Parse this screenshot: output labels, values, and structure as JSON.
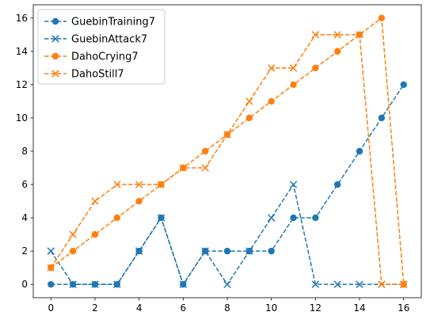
{
  "chart_data": {
    "type": "line",
    "title": "",
    "xlabel": "",
    "ylabel": "",
    "xlim": [
      -0.8,
      16.8
    ],
    "ylim": [
      -0.8,
      16.8
    ],
    "x_ticks": [
      0,
      2,
      4,
      6,
      8,
      10,
      12,
      14,
      16
    ],
    "y_ticks": [
      0,
      2,
      4,
      6,
      8,
      10,
      12,
      14,
      16
    ],
    "grid": false,
    "legend_position": "upper-left",
    "x": [
      0,
      1,
      2,
      3,
      4,
      5,
      6,
      7,
      8,
      9,
      10,
      11,
      12,
      13,
      14,
      15,
      16
    ],
    "series": [
      {
        "name": "GuebinTraining7",
        "color": "#1f77b4",
        "marker": "circle",
        "linestyle": "dashed",
        "values": [
          0,
          0,
          0,
          0,
          2,
          4,
          0,
          2,
          2,
          2,
          2,
          4,
          4,
          6,
          8,
          10,
          12
        ]
      },
      {
        "name": "GuebinAttack7",
        "color": "#1f77b4",
        "marker": "x",
        "linestyle": "dashed",
        "values": [
          2,
          0,
          0,
          0,
          2,
          4,
          0,
          2,
          0,
          2,
          4,
          6,
          0,
          0,
          0,
          0,
          0
        ]
      },
      {
        "name": "DahoCrying7",
        "color": "#ff7f0e",
        "marker": "circle",
        "linestyle": "dashed",
        "values": [
          1,
          2,
          3,
          4,
          5,
          6,
          7,
          8,
          9,
          10,
          11,
          12,
          13,
          14,
          15,
          16,
          0
        ]
      },
      {
        "name": "DahoStill7",
        "color": "#ff7f0e",
        "marker": "x",
        "linestyle": "dashed",
        "values": [
          1,
          3,
          5,
          6,
          6,
          6,
          7,
          7,
          9,
          11,
          13,
          13,
          15,
          15,
          15,
          0,
          0
        ]
      }
    ]
  }
}
